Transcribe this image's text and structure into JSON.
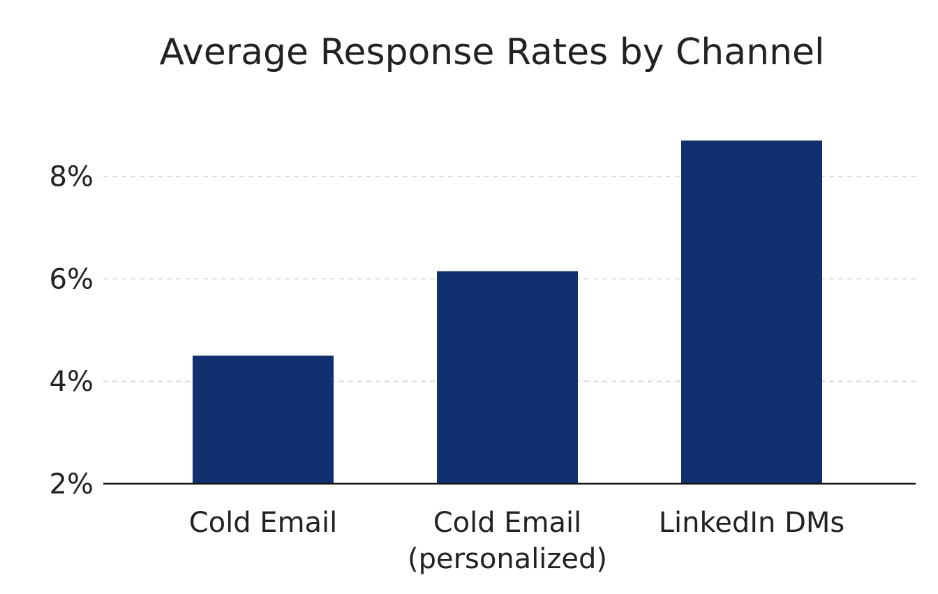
{
  "chart_data": {
    "type": "bar",
    "title": "Average Response Rates by Channel",
    "xlabel": "",
    "ylabel": "",
    "categories": [
      [
        "Cold Email"
      ],
      [
        "Cold Email",
        "(personalized)"
      ],
      [
        "LinkedIn DMs"
      ]
    ],
    "values": [
      4.5,
      6.15,
      8.7
    ],
    "ylim": [
      2,
      9.4
    ],
    "yticks": [
      2,
      4,
      6,
      8
    ],
    "ytick_labels": [
      "2%",
      "4%",
      "6%",
      "8%"
    ],
    "grid": true,
    "legend": "none",
    "bar_color": "#11306f"
  }
}
